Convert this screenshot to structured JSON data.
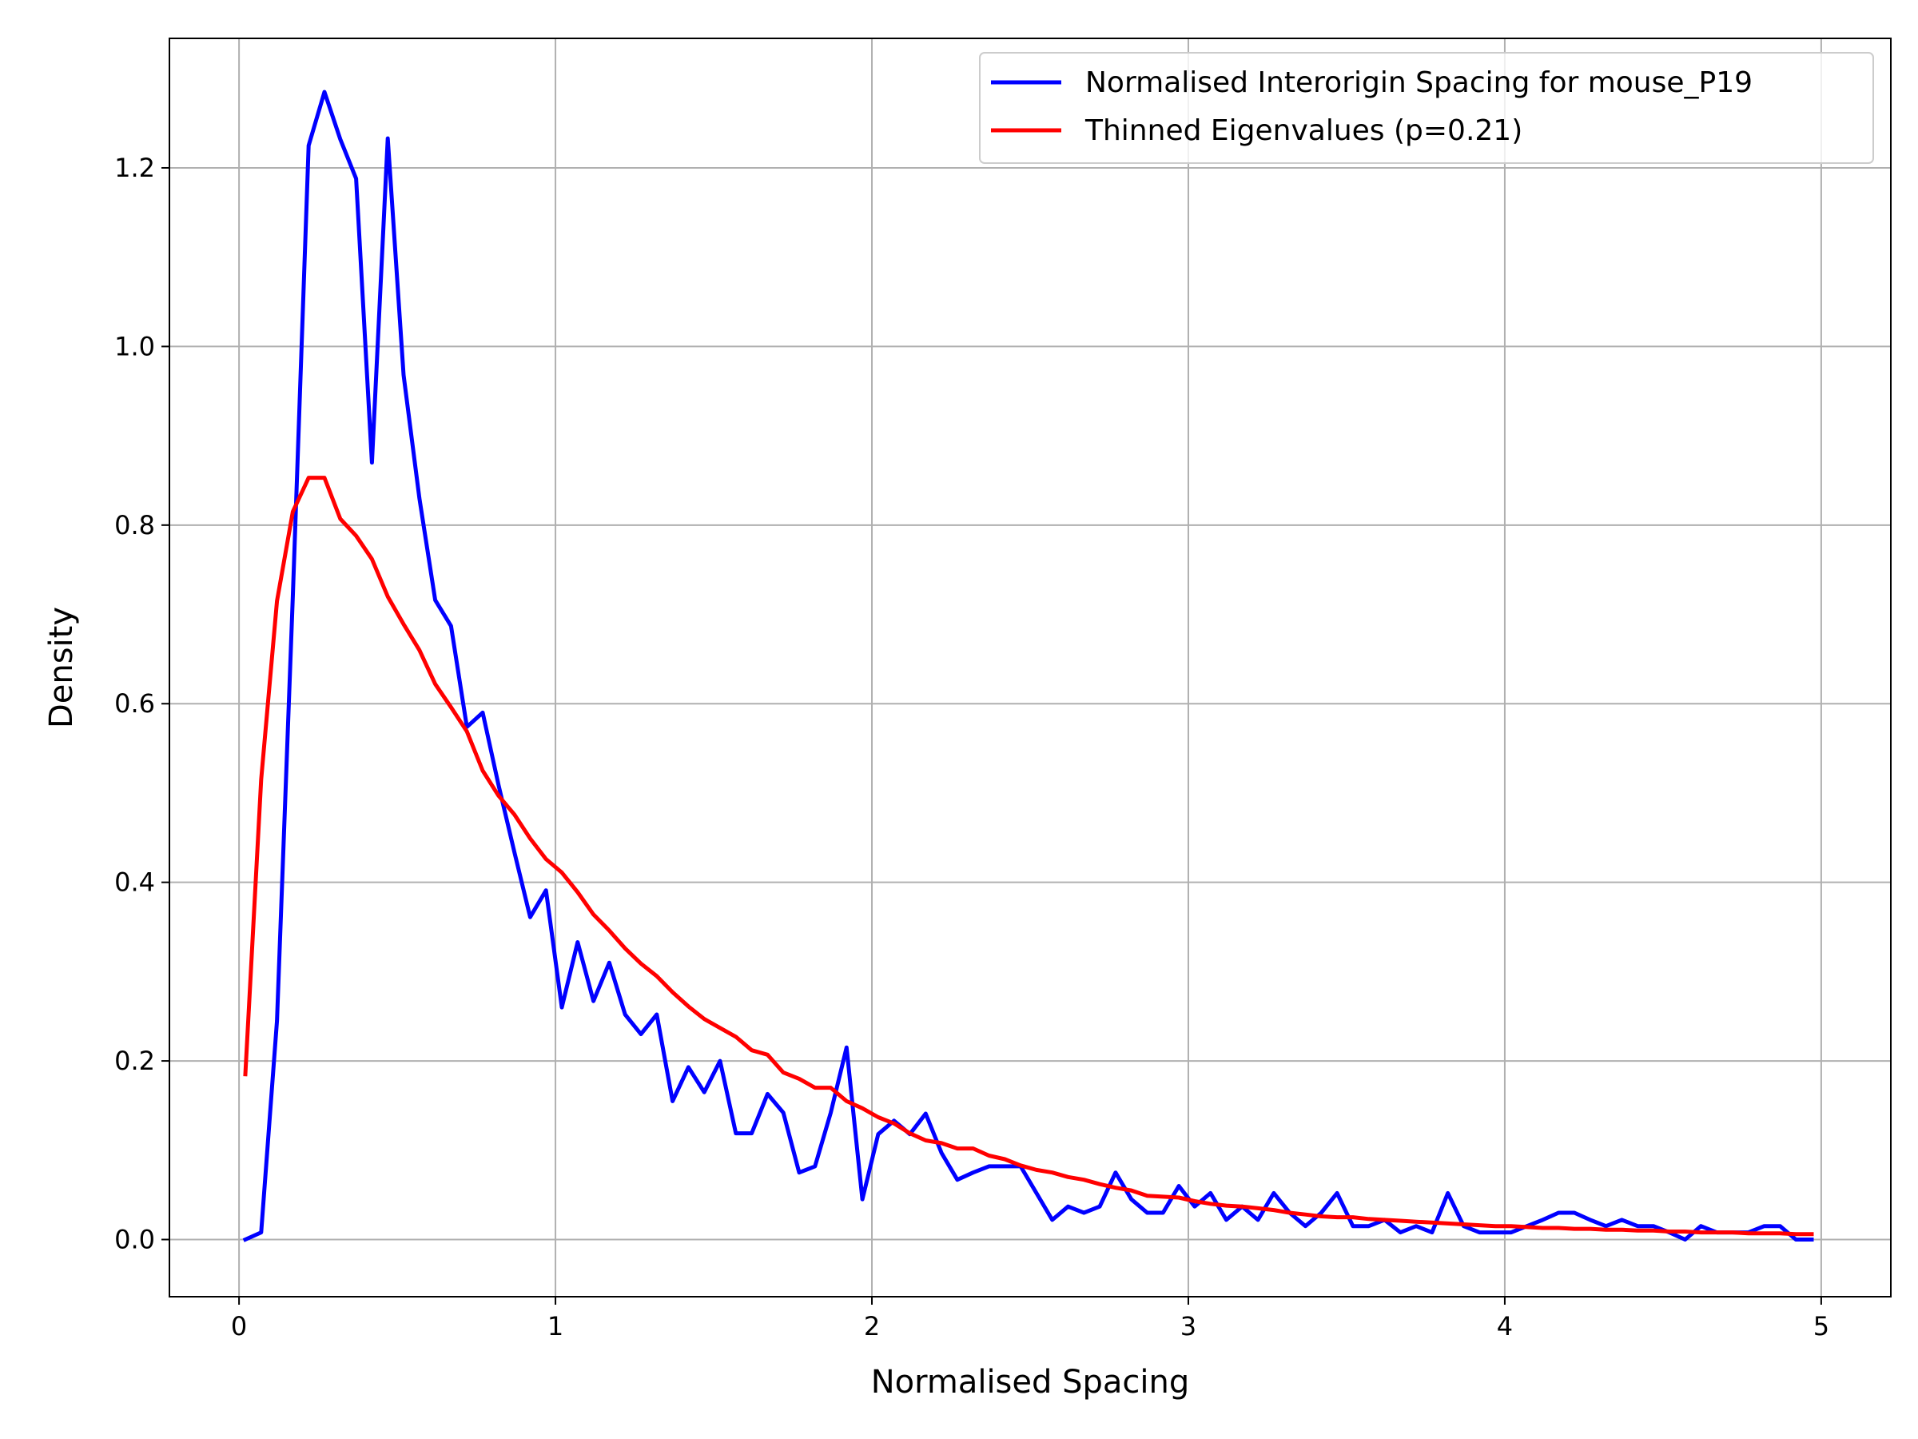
{
  "chart_data": {
    "type": "line",
    "xlabel": "Normalised Spacing",
    "ylabel": "Density",
    "xlim": [
      -0.22,
      5.22
    ],
    "ylim": [
      -0.064,
      1.345
    ],
    "xticks": [
      0,
      1,
      2,
      3,
      4,
      5
    ],
    "xtick_labels": [
      "0",
      "1",
      "2",
      "3",
      "4",
      "5"
    ],
    "yticks": [
      0.0,
      0.2,
      0.4,
      0.6,
      0.8,
      1.0,
      1.2
    ],
    "ytick_labels": [
      "0.0",
      "0.2",
      "0.4",
      "0.6",
      "0.8",
      "1.0",
      "1.2"
    ],
    "grid": true,
    "legend_position": "top-right",
    "series": [
      {
        "name": "Normalised Interorigin Spacing for mouse_P19",
        "color": "#0000ff",
        "x": [
          0.02,
          0.07,
          0.12,
          0.17,
          0.22,
          0.27,
          0.32,
          0.37,
          0.42,
          0.47,
          0.52,
          0.57,
          0.62,
          0.67,
          0.72,
          0.77,
          0.82,
          0.87,
          0.92,
          0.97,
          1.02,
          1.07,
          1.12,
          1.17,
          1.22,
          1.27,
          1.32,
          1.37,
          1.42,
          1.47,
          1.52,
          1.57,
          1.62,
          1.67,
          1.72,
          1.77,
          1.82,
          1.87,
          1.92,
          1.97,
          2.02,
          2.07,
          2.12,
          2.17,
          2.22,
          2.27,
          2.32,
          2.37,
          2.42,
          2.47,
          2.52,
          2.57,
          2.62,
          2.67,
          2.72,
          2.77,
          2.82,
          2.87,
          2.92,
          2.97,
          3.02,
          3.07,
          3.12,
          3.17,
          3.22,
          3.27,
          3.32,
          3.37,
          3.42,
          3.47,
          3.52,
          3.57,
          3.62,
          3.67,
          3.72,
          3.77,
          3.82,
          3.87,
          3.92,
          3.97,
          4.02,
          4.07,
          4.12,
          4.17,
          4.22,
          4.27,
          4.32,
          4.37,
          4.42,
          4.47,
          4.52,
          4.57,
          4.62,
          4.67,
          4.72,
          4.77,
          4.82,
          4.87,
          4.92,
          4.97
        ],
        "y": [
          0.0,
          0.008,
          0.245,
          0.72,
          1.225,
          1.285,
          1.232,
          1.188,
          0.87,
          1.233,
          0.968,
          0.83,
          0.716,
          0.687,
          0.574,
          0.59,
          0.509,
          0.434,
          0.361,
          0.391,
          0.26,
          0.333,
          0.267,
          0.31,
          0.252,
          0.23,
          0.252,
          0.155,
          0.193,
          0.165,
          0.2,
          0.119,
          0.119,
          0.163,
          0.142,
          0.075,
          0.082,
          0.142,
          0.215,
          0.045,
          0.118,
          0.133,
          0.118,
          0.141,
          0.097,
          0.067,
          0.075,
          0.082,
          0.082,
          0.082,
          0.052,
          0.022,
          0.037,
          0.03,
          0.037,
          0.075,
          0.045,
          0.03,
          0.03,
          0.06,
          0.037,
          0.052,
          0.022,
          0.037,
          0.022,
          0.052,
          0.03,
          0.015,
          0.03,
          0.052,
          0.015,
          0.015,
          0.022,
          0.008,
          0.015,
          0.008,
          0.052,
          0.015,
          0.008,
          0.008,
          0.008,
          0.015,
          0.022,
          0.03,
          0.03,
          0.022,
          0.015,
          0.022,
          0.015,
          0.015,
          0.008,
          0.0,
          0.015,
          0.008,
          0.008,
          0.008,
          0.015,
          0.015,
          0.0,
          0.0
        ]
      },
      {
        "name": "Thinned Eigenvalues (p=0.21)",
        "color": "#ff0000",
        "x": [
          0.02,
          0.07,
          0.12,
          0.17,
          0.22,
          0.27,
          0.32,
          0.37,
          0.42,
          0.47,
          0.52,
          0.57,
          0.62,
          0.67,
          0.72,
          0.77,
          0.82,
          0.87,
          0.92,
          0.97,
          1.02,
          1.07,
          1.12,
          1.17,
          1.22,
          1.27,
          1.32,
          1.37,
          1.42,
          1.47,
          1.52,
          1.57,
          1.62,
          1.67,
          1.72,
          1.77,
          1.82,
          1.87,
          1.92,
          1.97,
          2.02,
          2.07,
          2.12,
          2.17,
          2.22,
          2.27,
          2.32,
          2.37,
          2.42,
          2.47,
          2.52,
          2.57,
          2.62,
          2.67,
          2.72,
          2.77,
          2.82,
          2.87,
          2.92,
          2.97,
          3.02,
          3.07,
          3.12,
          3.17,
          3.22,
          3.27,
          3.32,
          3.37,
          3.42,
          3.47,
          3.52,
          3.57,
          3.62,
          3.67,
          3.72,
          3.77,
          3.82,
          3.87,
          3.92,
          3.97,
          4.02,
          4.07,
          4.12,
          4.17,
          4.22,
          4.27,
          4.32,
          4.37,
          4.42,
          4.47,
          4.52,
          4.57,
          4.62,
          4.67,
          4.72,
          4.77,
          4.82,
          4.87,
          4.92,
          4.97
        ],
        "y": [
          0.185,
          0.515,
          0.715,
          0.815,
          0.853,
          0.853,
          0.807,
          0.788,
          0.762,
          0.72,
          0.689,
          0.66,
          0.622,
          0.596,
          0.569,
          0.525,
          0.497,
          0.476,
          0.449,
          0.426,
          0.411,
          0.389,
          0.364,
          0.346,
          0.326,
          0.309,
          0.295,
          0.277,
          0.261,
          0.247,
          0.237,
          0.227,
          0.212,
          0.207,
          0.187,
          0.18,
          0.17,
          0.17,
          0.155,
          0.147,
          0.137,
          0.13,
          0.119,
          0.111,
          0.108,
          0.102,
          0.102,
          0.094,
          0.09,
          0.083,
          0.078,
          0.075,
          0.07,
          0.067,
          0.062,
          0.058,
          0.055,
          0.049,
          0.048,
          0.047,
          0.043,
          0.04,
          0.038,
          0.037,
          0.035,
          0.033,
          0.03,
          0.028,
          0.026,
          0.025,
          0.025,
          0.023,
          0.022,
          0.021,
          0.02,
          0.019,
          0.018,
          0.017,
          0.016,
          0.015,
          0.015,
          0.014,
          0.013,
          0.013,
          0.012,
          0.012,
          0.011,
          0.011,
          0.01,
          0.01,
          0.009,
          0.009,
          0.008,
          0.008,
          0.008,
          0.007,
          0.007,
          0.007,
          0.006,
          0.006
        ]
      }
    ]
  }
}
